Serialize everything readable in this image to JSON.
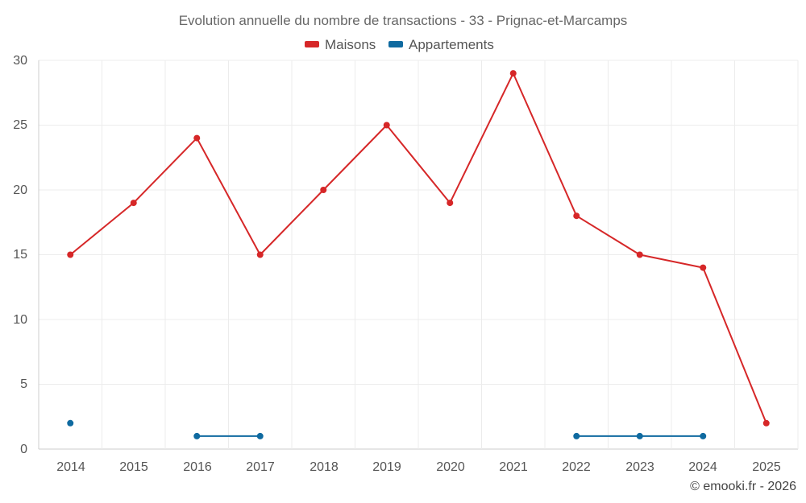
{
  "chart_data": {
    "type": "line",
    "title": "Evolution annuelle du nombre de transactions - 33 - Prignac-et-Marcamps",
    "categories": [
      "2014",
      "2015",
      "2016",
      "2017",
      "2018",
      "2019",
      "2020",
      "2021",
      "2022",
      "2023",
      "2024",
      "2025"
    ],
    "series": [
      {
        "name": "Maisons",
        "color": "#d62728",
        "values": [
          15,
          19,
          24,
          15,
          20,
          25,
          19,
          29,
          18,
          15,
          14,
          2
        ]
      },
      {
        "name": "Appartements",
        "color": "#0f6aa0",
        "values": [
          2,
          null,
          1,
          1,
          null,
          null,
          null,
          null,
          1,
          1,
          1,
          null
        ]
      }
    ],
    "yticks": [
      "0",
      "5",
      "10",
      "15",
      "20",
      "25",
      "30"
    ],
    "ylim": [
      0,
      30
    ],
    "grid": true,
    "legend": "top-center",
    "credit": "© emooki.fr - 2026"
  }
}
